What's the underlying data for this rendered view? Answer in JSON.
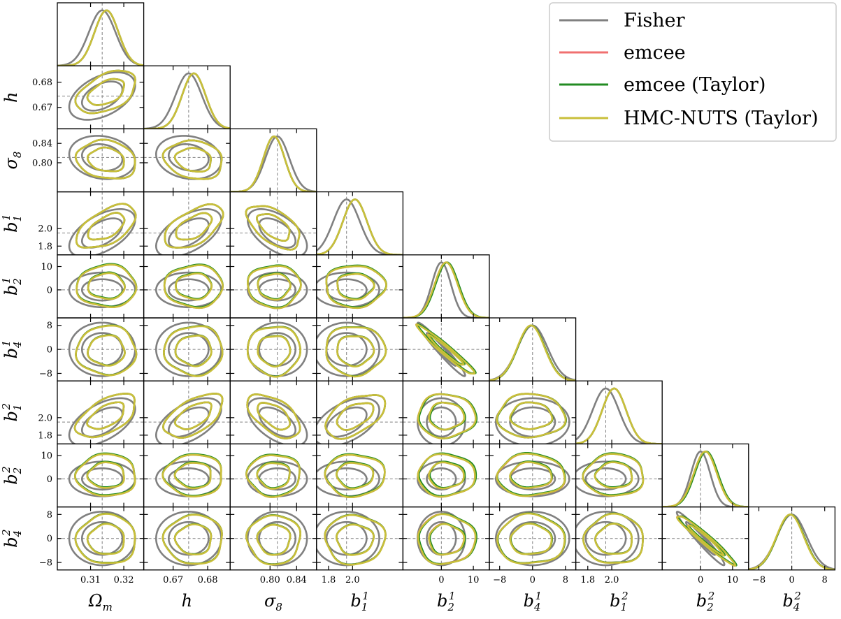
{
  "chart_data": {
    "type": "corner",
    "parameters": [
      {
        "name": "Ω_m",
        "label": "Ω",
        "sub": "m",
        "sup": "",
        "fid": 0.3135,
        "range": [
          0.3,
          0.326
        ],
        "ticks": [
          0.31,
          0.32
        ],
        "tick_labels": [
          "0.31",
          "0.32"
        ]
      },
      {
        "name": "h",
        "label": "h",
        "sub": "",
        "sup": "",
        "fid": 0.6745,
        "range": [
          0.6615,
          0.6865
        ],
        "ticks": [
          0.67,
          0.68
        ],
        "tick_labels": [
          "0.67",
          "0.68"
        ]
      },
      {
        "name": "σ_8",
        "label": "σ",
        "sub": "8",
        "sup": "",
        "fid": 0.811,
        "range": [
          0.74,
          0.87
        ],
        "ticks": [
          0.8,
          0.84
        ],
        "tick_labels": [
          "0.80",
          "0.84"
        ]
      },
      {
        "name": "b^1_1",
        "label": "b",
        "sub": "1",
        "sup": "1",
        "fid": 1.95,
        "range": [
          1.7,
          2.42
        ],
        "ticks": [
          1.8,
          2.0
        ],
        "tick_labels": [
          "1.8",
          "2.0"
        ]
      },
      {
        "name": "b^1_2",
        "label": "b",
        "sub": "2",
        "sup": "1",
        "fid": 0.0,
        "range": [
          -12,
          15
        ],
        "ticks": [
          0,
          10
        ],
        "tick_labels": [
          "0",
          "10"
        ]
      },
      {
        "name": "b^1_4",
        "label": "b",
        "sub": "4",
        "sup": "1",
        "fid": 0.0,
        "range": [
          -10.5,
          10.5
        ],
        "ticks": [
          -8,
          0,
          8
        ],
        "tick_labels": [
          "−8",
          "0",
          "8"
        ]
      },
      {
        "name": "b^2_1",
        "label": "b",
        "sub": "1",
        "sup": "2",
        "fid": 1.95,
        "range": [
          1.7,
          2.42
        ],
        "ticks": [
          1.8,
          2.0
        ],
        "tick_labels": [
          "1.8",
          "2.0"
        ]
      },
      {
        "name": "b^2_2",
        "label": "b",
        "sub": "2",
        "sup": "2",
        "fid": 0.0,
        "range": [
          -12,
          15
        ],
        "ticks": [
          0,
          10
        ],
        "tick_labels": [
          "0",
          "10"
        ]
      },
      {
        "name": "b^2_4",
        "label": "b",
        "sub": "4",
        "sup": "2",
        "fid": 0.0,
        "range": [
          -10.5,
          10.5
        ],
        "ticks": [
          -8,
          0,
          8
        ],
        "tick_labels": [
          "−8",
          "0",
          "8"
        ]
      }
    ],
    "series": [
      {
        "name": "Fisher",
        "color": "#808080",
        "mean": [
          0.3135,
          0.6745,
          0.811,
          1.95,
          0.0,
          0.0,
          1.95,
          0.0,
          0.0
        ],
        "sigma": [
          0.004,
          0.0038,
          0.018,
          0.11,
          3.0,
          3.6,
          0.11,
          3.0,
          3.6
        ]
      },
      {
        "name": "emcee",
        "color": "#f07070",
        "mean": [
          0.3148,
          0.676,
          0.806,
          2.02,
          1.5,
          -0.3,
          2.02,
          1.5,
          -0.3
        ],
        "sigma": [
          0.0036,
          0.0034,
          0.016,
          0.1,
          3.6,
          3.3,
          0.1,
          3.6,
          3.3
        ]
      },
      {
        "name": "emcee (Taylor)",
        "color": "#228b22",
        "mean": [
          0.3148,
          0.676,
          0.806,
          2.02,
          1.8,
          -0.3,
          2.02,
          1.8,
          -0.3
        ],
        "sigma": [
          0.0036,
          0.0034,
          0.016,
          0.1,
          3.6,
          3.3,
          0.1,
          3.6,
          3.3
        ]
      },
      {
        "name": "HMC-NUTS (Taylor)",
        "color": "#c9bf3a",
        "mean": [
          0.3148,
          0.676,
          0.806,
          2.02,
          1.5,
          -0.4,
          2.02,
          1.5,
          -0.4
        ],
        "sigma": [
          0.0036,
          0.0034,
          0.016,
          0.1,
          3.6,
          3.3,
          0.1,
          3.6,
          3.3
        ]
      }
    ],
    "legend": {
      "placement": "top-right",
      "entries": [
        "Fisher",
        "emcee",
        "emcee (Taylor)",
        "HMC-NUTS (Taylor)"
      ]
    },
    "contour_levels": [
      "68%",
      "95%"
    ],
    "fiducial_lines": "dashed gray"
  }
}
